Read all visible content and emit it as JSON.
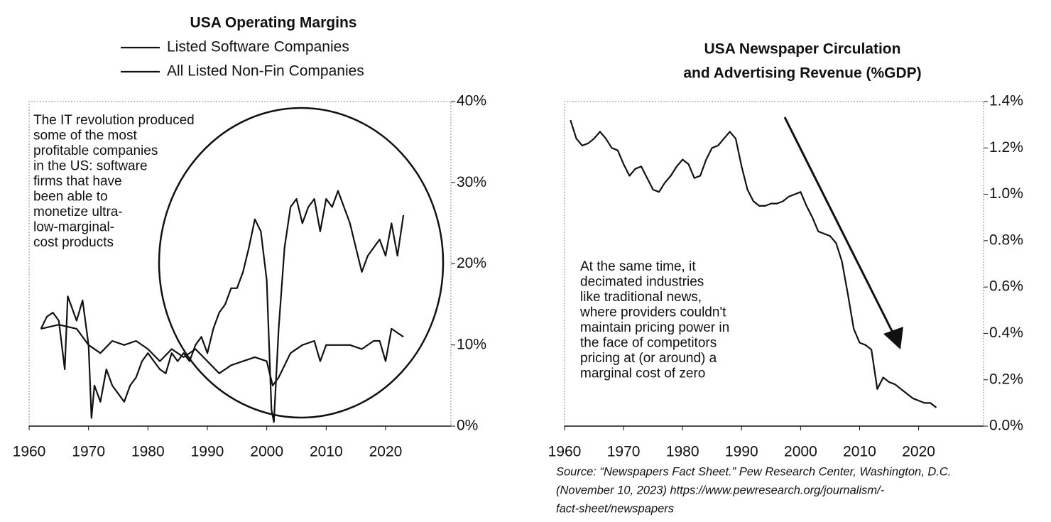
{
  "chart_data": [
    {
      "type": "line",
      "title": "USA Operating Margins",
      "annotation": [
        "The IT revolution produced",
        "some of the most",
        "profitable companies",
        "in the US: software",
        "firms that have",
        "been able to",
        "monetize ultra-",
        "low-marginal-",
        "cost products"
      ],
      "xlim": [
        1960,
        2031
      ],
      "xticks": [
        1960,
        1970,
        1980,
        1990,
        2000,
        2010,
        2020
      ],
      "ylim": [
        0,
        40
      ],
      "yticks": [
        {
          "value": 0,
          "label": "0%"
        },
        {
          "value": 10,
          "label": "10%"
        },
        {
          "value": 20,
          "label": "20%"
        },
        {
          "value": 30,
          "label": "30%"
        },
        {
          "value": 40,
          "label": "40%"
        }
      ],
      "grid": false,
      "series": [
        {
          "name": "Listed Software Companies",
          "color": "#111111",
          "x": [
            1962,
            1963,
            1964,
            1965,
            1966,
            1966.5,
            1967,
            1968,
            1969,
            1970,
            1970.5,
            1971,
            1972,
            1973,
            1974,
            1975,
            1976,
            1977,
            1978,
            1979,
            1980,
            1981,
            1982,
            1983,
            1984,
            1985,
            1986,
            1987,
            1988,
            1989,
            1990,
            1991,
            1992,
            1993,
            1994,
            1995,
            1996,
            1997,
            1998,
            1999,
            2000,
            2000.8,
            2001.2,
            2002,
            2003,
            2004,
            2005,
            2006,
            2007,
            2008,
            2009,
            2010,
            2011,
            2012,
            2013,
            2014,
            2015,
            2016,
            2017,
            2018,
            2019,
            2020,
            2021,
            2022,
            2023
          ],
          "values": [
            12,
            13.5,
            14,
            13,
            7,
            16,
            15,
            13,
            15.5,
            10,
            1,
            5,
            3,
            7,
            5,
            4,
            3,
            5,
            6,
            8,
            9,
            8,
            7,
            6.5,
            9,
            8,
            9,
            8,
            10,
            11,
            9,
            12,
            14,
            15,
            17,
            17,
            19,
            22,
            25.5,
            24,
            18,
            2,
            0.5,
            12,
            22,
            27,
            28,
            25,
            27,
            28,
            24,
            28,
            27,
            29,
            27,
            25,
            22,
            19,
            21,
            22,
            23,
            21,
            25,
            21,
            26
          ]
        },
        {
          "name": "All Listed Non-Fin Companies",
          "color": "#111111",
          "x": [
            1962,
            1965,
            1968,
            1970,
            1972,
            1974,
            1976,
            1978,
            1980,
            1982,
            1984,
            1986,
            1988,
            1990,
            1992,
            1994,
            1996,
            1998,
            2000,
            2001,
            2002,
            2004,
            2006,
            2008,
            2009,
            2010,
            2012,
            2014,
            2016,
            2018,
            2019,
            2020,
            2021,
            2022,
            2023
          ],
          "values": [
            12,
            12.5,
            12,
            10,
            9,
            10.5,
            10,
            10.5,
            9.5,
            8,
            9.5,
            8.5,
            9.5,
            8,
            6.5,
            7.5,
            8,
            8.5,
            8,
            5,
            6,
            9,
            10,
            10.5,
            8,
            10,
            10,
            10,
            9.5,
            10.5,
            10.5,
            8,
            12,
            11.5,
            11
          ]
        }
      ]
    },
    {
      "type": "line",
      "title": [
        "USA Newspaper Circulation",
        "and Advertising Revenue (%GDP)"
      ],
      "annotation": [
        "At the same time, it",
        "decimated industries",
        "like traditional news,",
        "where providers couldn't",
        "maintain pricing power in",
        "the face of competitors",
        "pricing at (or around) a",
        "marginal cost of zero"
      ],
      "source": [
        "Source: “Newspapers Fact Sheet.” Pew Research Center, Washington, D.C.",
        "(November 10, 2023) https://www.pewresearch.org/journalism/-",
        "fact-sheet/newspapers"
      ],
      "xlim": [
        1960,
        2031
      ],
      "xticks": [
        1960,
        1970,
        1980,
        1990,
        2000,
        2010,
        2020
      ],
      "ylim": [
        0,
        1.4
      ],
      "yticks": [
        {
          "value": 0,
          "label": "0.0%"
        },
        {
          "value": 0.2,
          "label": "0.2%"
        },
        {
          "value": 0.4,
          "label": "0.4%"
        },
        {
          "value": 0.6,
          "label": "0.6%"
        },
        {
          "value": 0.8,
          "label": "0.8%"
        },
        {
          "value": 1.0,
          "label": "1.0%"
        },
        {
          "value": 1.2,
          "label": "1.2%"
        },
        {
          "value": 1.4,
          "label": "1.4%"
        }
      ],
      "grid": false,
      "series": [
        {
          "color": "#111111",
          "x": [
            1961,
            1962,
            1963,
            1964,
            1965,
            1966,
            1967,
            1968,
            1969,
            1970,
            1971,
            1972,
            1973,
            1974,
            1975,
            1976,
            1977,
            1978,
            1979,
            1980,
            1981,
            1982,
            1983,
            1984,
            1985,
            1986,
            1987,
            1988,
            1989,
            1990,
            1991,
            1992,
            1993,
            1994,
            1995,
            1996,
            1997,
            1998,
            1999,
            2000,
            2001,
            2002,
            2003,
            2004,
            2005,
            2006,
            2007,
            2008,
            2009,
            2010,
            2011,
            2012,
            2013,
            2014,
            2015,
            2016,
            2017,
            2018,
            2019,
            2020,
            2021,
            2022,
            2023
          ],
          "values": [
            1.32,
            1.24,
            1.21,
            1.22,
            1.24,
            1.27,
            1.24,
            1.2,
            1.19,
            1.13,
            1.08,
            1.11,
            1.12,
            1.07,
            1.02,
            1.01,
            1.05,
            1.08,
            1.12,
            1.15,
            1.13,
            1.07,
            1.08,
            1.15,
            1.2,
            1.21,
            1.24,
            1.27,
            1.24,
            1.12,
            1.02,
            0.97,
            0.95,
            0.95,
            0.96,
            0.96,
            0.97,
            0.99,
            1.0,
            1.01,
            0.95,
            0.9,
            0.84,
            0.83,
            0.82,
            0.79,
            0.71,
            0.57,
            0.42,
            0.36,
            0.35,
            0.33,
            0.16,
            0.21,
            0.19,
            0.18,
            0.16,
            0.14,
            0.12,
            0.11,
            0.1,
            0.1,
            0.08
          ]
        }
      ]
    }
  ]
}
